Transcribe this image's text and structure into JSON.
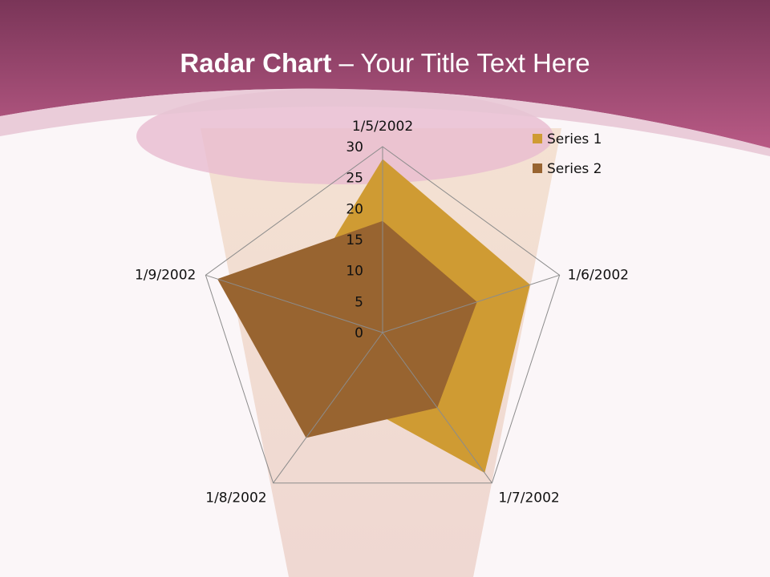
{
  "slide": {
    "title_bold": "Radar Chart",
    "title_rest": " – Your Title Text Here",
    "colors": {
      "header_dark": "#7a3558",
      "header_light": "#b85a85",
      "background": "#fbf6f8"
    }
  },
  "chart_data": {
    "type": "radar",
    "categories": [
      "1/5/2002",
      "1/6/2002",
      "1/7/2002",
      "1/8/2002",
      "1/9/2002"
    ],
    "series": [
      {
        "name": "Series 1",
        "values": [
          28,
          25,
          28,
          12,
          15
        ],
        "color": "#cf9b33"
      },
      {
        "name": "Series 2",
        "values": [
          18,
          16,
          15,
          21,
          28
        ],
        "color": "#986430"
      }
    ],
    "axis_ticks": [
      "0",
      "5",
      "10",
      "15",
      "20",
      "25",
      "30"
    ],
    "rlim": [
      0,
      30
    ],
    "legend_position": "top-right",
    "grid": "outer ring and spokes"
  }
}
